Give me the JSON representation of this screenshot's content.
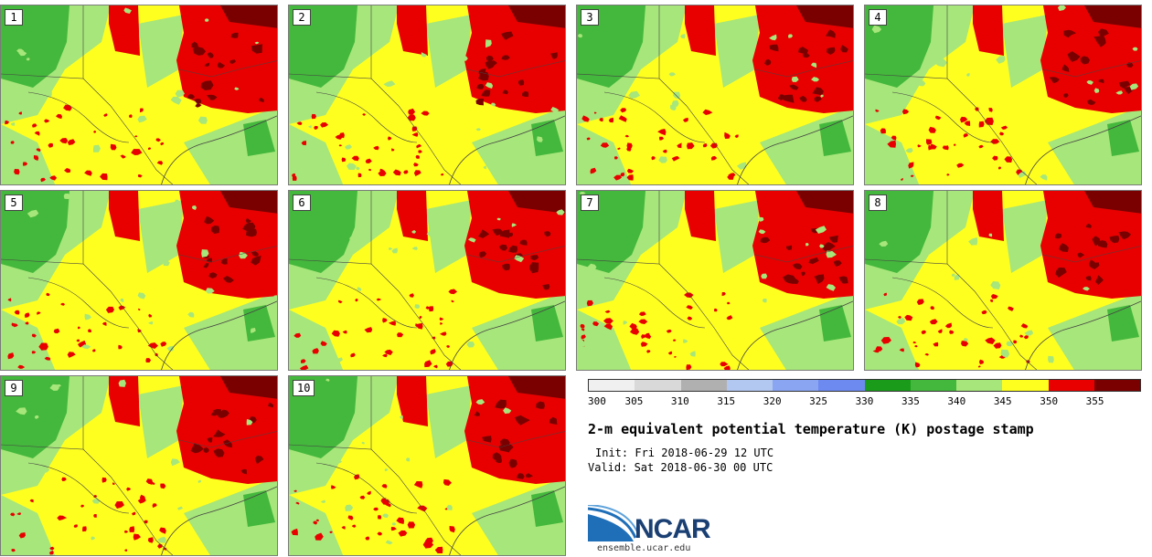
{
  "colors": {
    "green_dark": "#2f9f2f",
    "green_mid": "#44b83c",
    "green_light": "#a7e67a",
    "yellow": "#ffff1f",
    "red": "#e80000",
    "darkred": "#7a0000",
    "border": "#444444",
    "accent": "#1a3f73"
  },
  "panels": [
    {
      "label": "1"
    },
    {
      "label": "2"
    },
    {
      "label": "3"
    },
    {
      "label": "4"
    },
    {
      "label": "5"
    },
    {
      "label": "6"
    },
    {
      "label": "7"
    },
    {
      "label": "8"
    },
    {
      "label": "9"
    },
    {
      "label": "10"
    }
  ],
  "colorbar": {
    "ticks": [
      "300",
      "305",
      "310",
      "315",
      "320",
      "325",
      "330",
      "335",
      "340",
      "345",
      "350",
      "355"
    ],
    "colors": [
      "#f0f0f0",
      "#d9d9d9",
      "#b0b0b0",
      "#b3c8f0",
      "#8aa6f2",
      "#6d8af0",
      "#1a9c1a",
      "#44b83c",
      "#a7e67a",
      "#ffff1f",
      "#e80000",
      "#7a0000"
    ]
  },
  "title": "2-m equivalent potential temperature (K) postage stamp",
  "init_text": "Init: Fri 2018-06-29 12 UTC",
  "valid_text": "Valid: Sat 2018-06-30 00 UTC",
  "logo": {
    "name": "NCAR",
    "url": "ensemble.ucar.edu",
    "icon": "ncar-swoosh-logo"
  }
}
